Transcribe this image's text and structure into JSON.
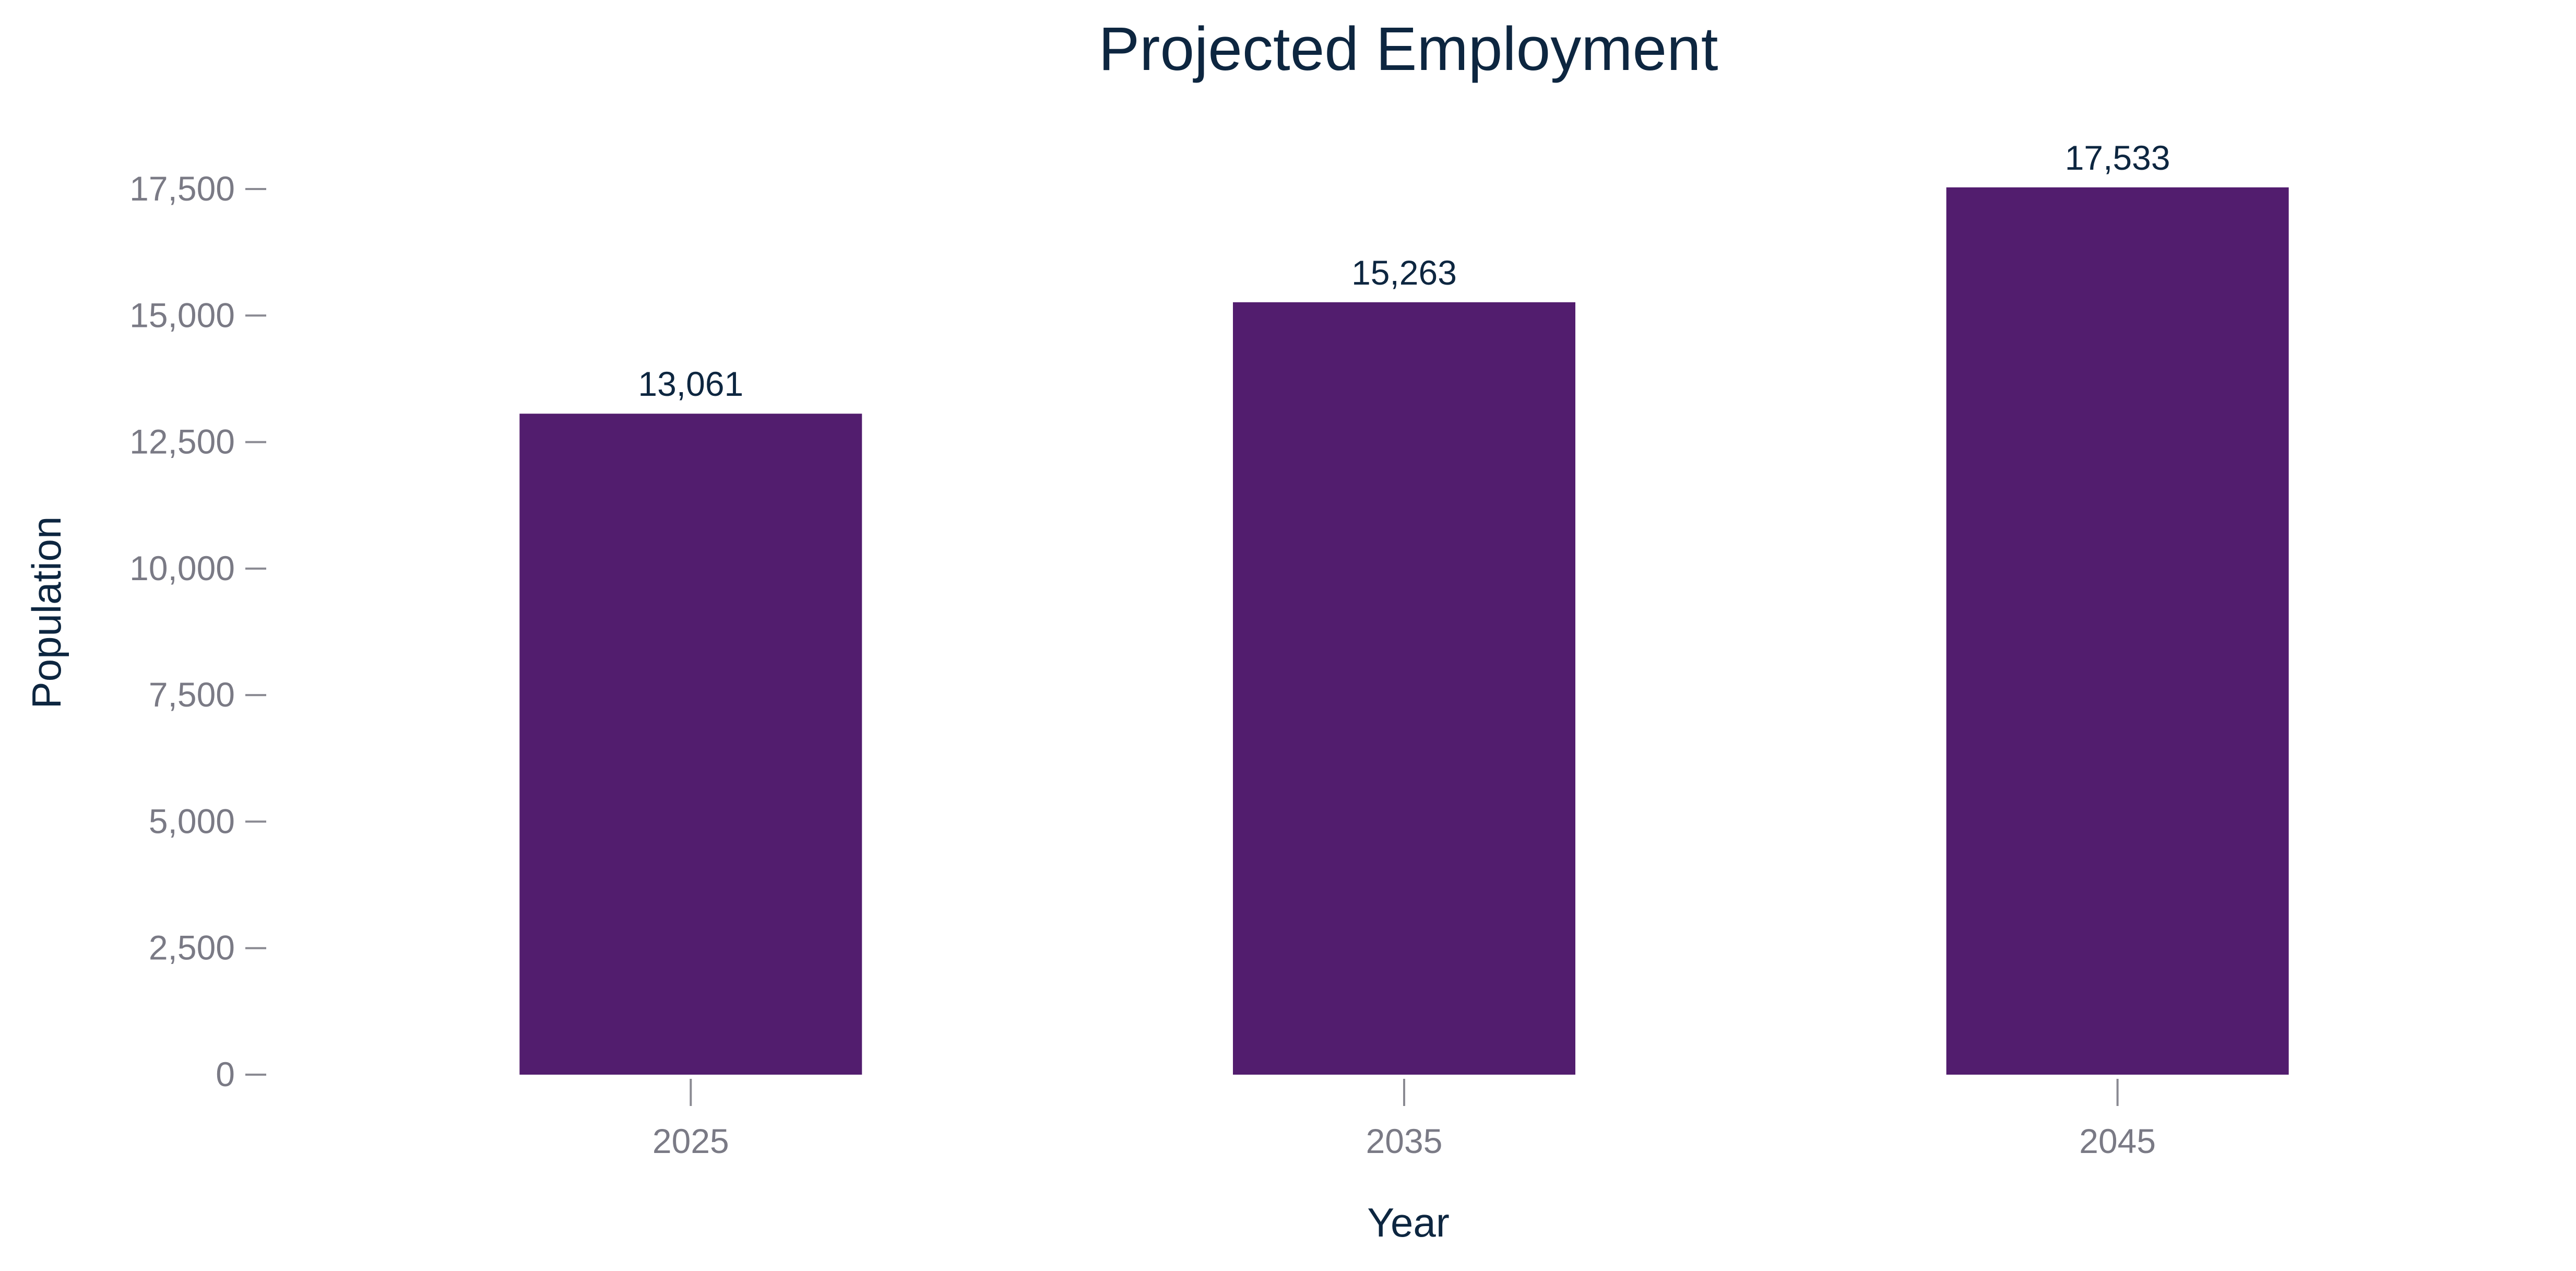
{
  "chart_data": {
    "type": "bar",
    "title": "Projected Employment",
    "xlabel": "Year",
    "ylabel": "Population",
    "categories": [
      "2025",
      "2035",
      "2045"
    ],
    "values": [
      13061,
      15263,
      17533
    ],
    "data_labels": [
      "13,061",
      "15,263",
      "17,533"
    ],
    "ylim": [
      0,
      17500
    ],
    "y_ticks": [
      0,
      2500,
      5000,
      7500,
      10000,
      12500,
      15000,
      17500
    ],
    "y_tick_labels": [
      "0",
      "2,500",
      "5,000",
      "7,500",
      "10,000",
      "12,500",
      "15,000",
      "17,500"
    ],
    "grid": false,
    "legend": "none"
  },
  "colors": {
    "bar": "#521d6e",
    "title_text": "#0d2640",
    "tick_text": "#7a7a85",
    "tick_line": "#8a8a92",
    "label_text": "#0d2640"
  }
}
